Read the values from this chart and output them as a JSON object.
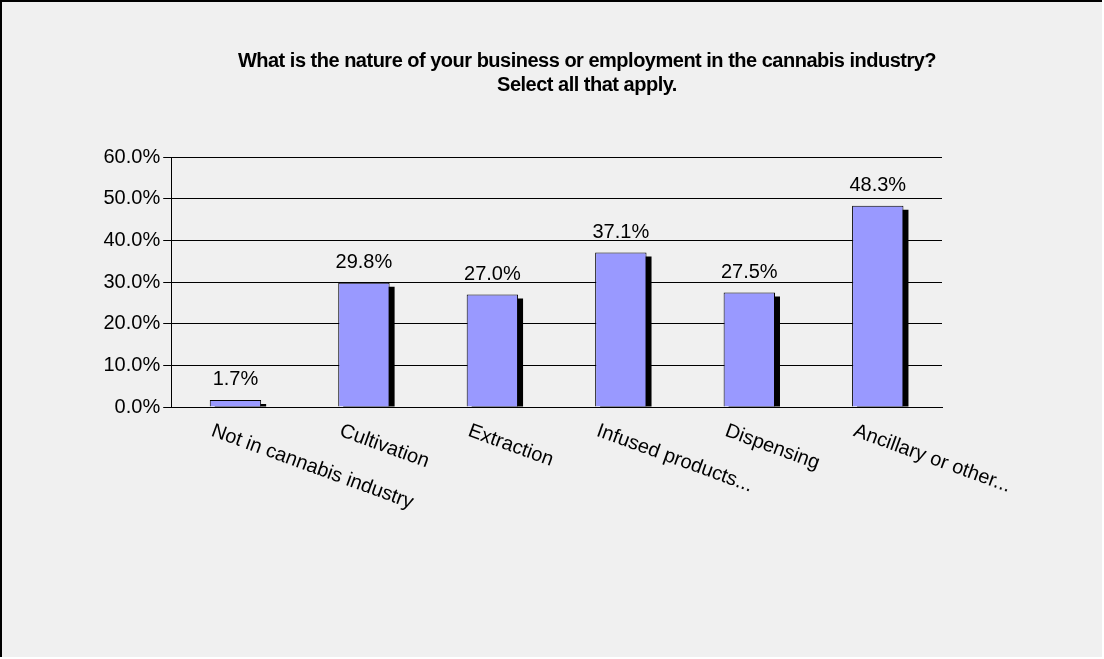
{
  "chart_data": {
    "type": "bar",
    "title": "What is the nature of your business or employment in the cannabis industry? Select all that apply.",
    "categories": [
      "Not in cannabis industry",
      "Cultivation",
      "Extraction",
      "Infused products...",
      "Dispensing",
      "Ancillary or other..."
    ],
    "values": [
      1.7,
      29.8,
      27.0,
      37.1,
      27.5,
      48.3
    ],
    "value_labels": [
      "1.7%",
      "29.8%",
      "27.0%",
      "37.1%",
      "27.5%",
      "48.3%"
    ],
    "color": "#9999ff",
    "ylim": [
      0,
      60
    ],
    "yticks": [
      {
        "value": 0,
        "label": "0.0%"
      },
      {
        "value": 10,
        "label": "10.0%"
      },
      {
        "value": 20,
        "label": "20.0%"
      },
      {
        "value": 30,
        "label": "30.0%"
      },
      {
        "value": 40,
        "label": "40.0%"
      },
      {
        "value": 50,
        "label": "50.0%"
      },
      {
        "value": 60,
        "label": "60.0%"
      }
    ],
    "grid": "y",
    "legend": false
  }
}
